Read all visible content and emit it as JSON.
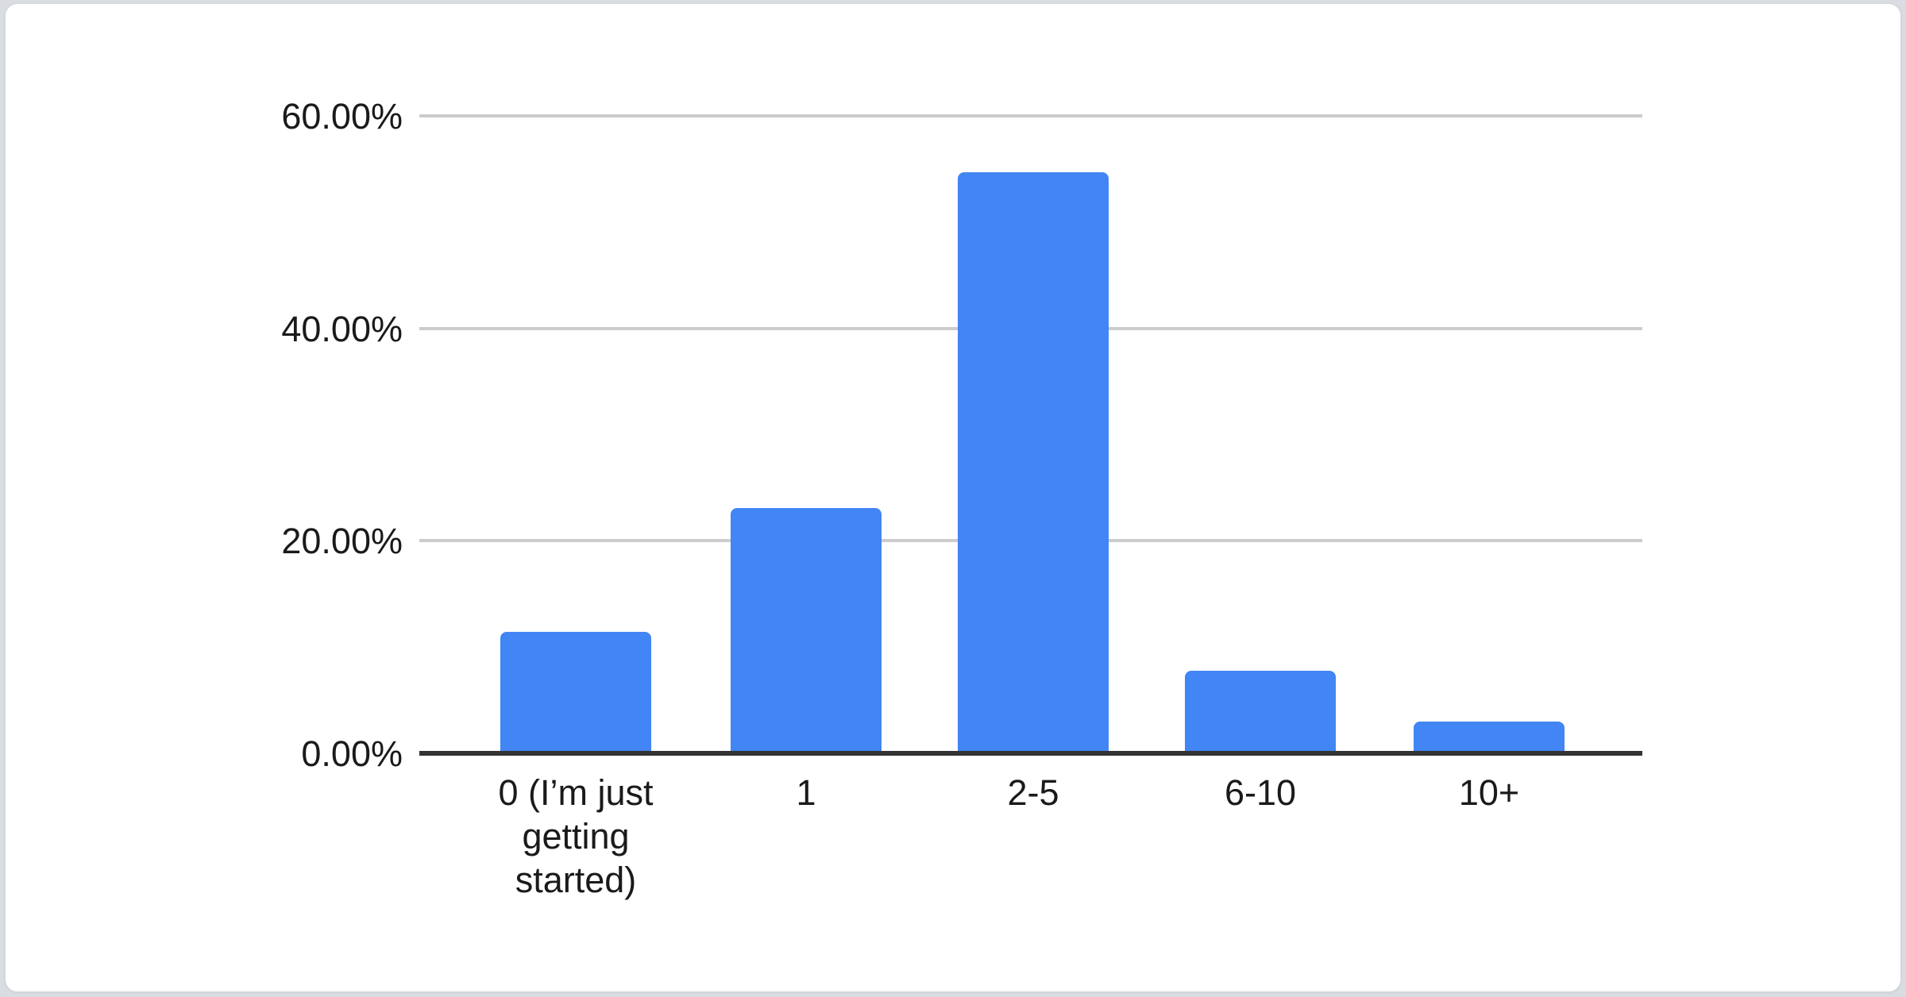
{
  "page": {
    "background_color": "#d9dce1",
    "card_color": "#ffffff",
    "card_border_color": "#d3d6db"
  },
  "chart_data": {
    "type": "bar",
    "title": "",
    "categories": [
      "0 (I’m just getting started)",
      "1",
      "2-5",
      "6-10",
      "10+"
    ],
    "values": [
      11.4,
      23.1,
      54.7,
      7.8,
      3.0
    ],
    "value_unit": "%",
    "xlabel": "",
    "ylabel": "",
    "ylim": [
      0,
      60
    ],
    "y_ticks": [
      {
        "value": 0,
        "label": "0.00%"
      },
      {
        "value": 20,
        "label": "20.00%"
      },
      {
        "value": 40,
        "label": "40.00%"
      },
      {
        "value": 60,
        "label": "60.00%"
      }
    ],
    "grid": true,
    "legend": "none",
    "colors": {
      "bar": "#4285f4",
      "gridline": "#cccccc",
      "axis_line": "#333333",
      "label_text": "#1a1a1a"
    }
  }
}
